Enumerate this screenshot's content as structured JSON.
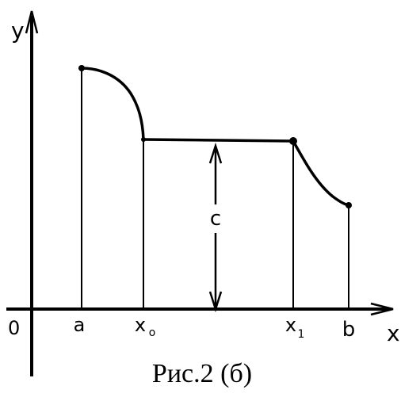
{
  "axes": {
    "y_label": "y",
    "x_label": "x",
    "origin_label": "0"
  },
  "ticks": {
    "a": "a",
    "x0": "x",
    "x0_sub": "o",
    "x1": "x",
    "x1_sub": "1",
    "b": "b"
  },
  "annotation": {
    "c_label": "c"
  },
  "caption": "Рис.2 (б)",
  "colors": {
    "ink": "#000000",
    "paper": "#ffffff"
  }
}
